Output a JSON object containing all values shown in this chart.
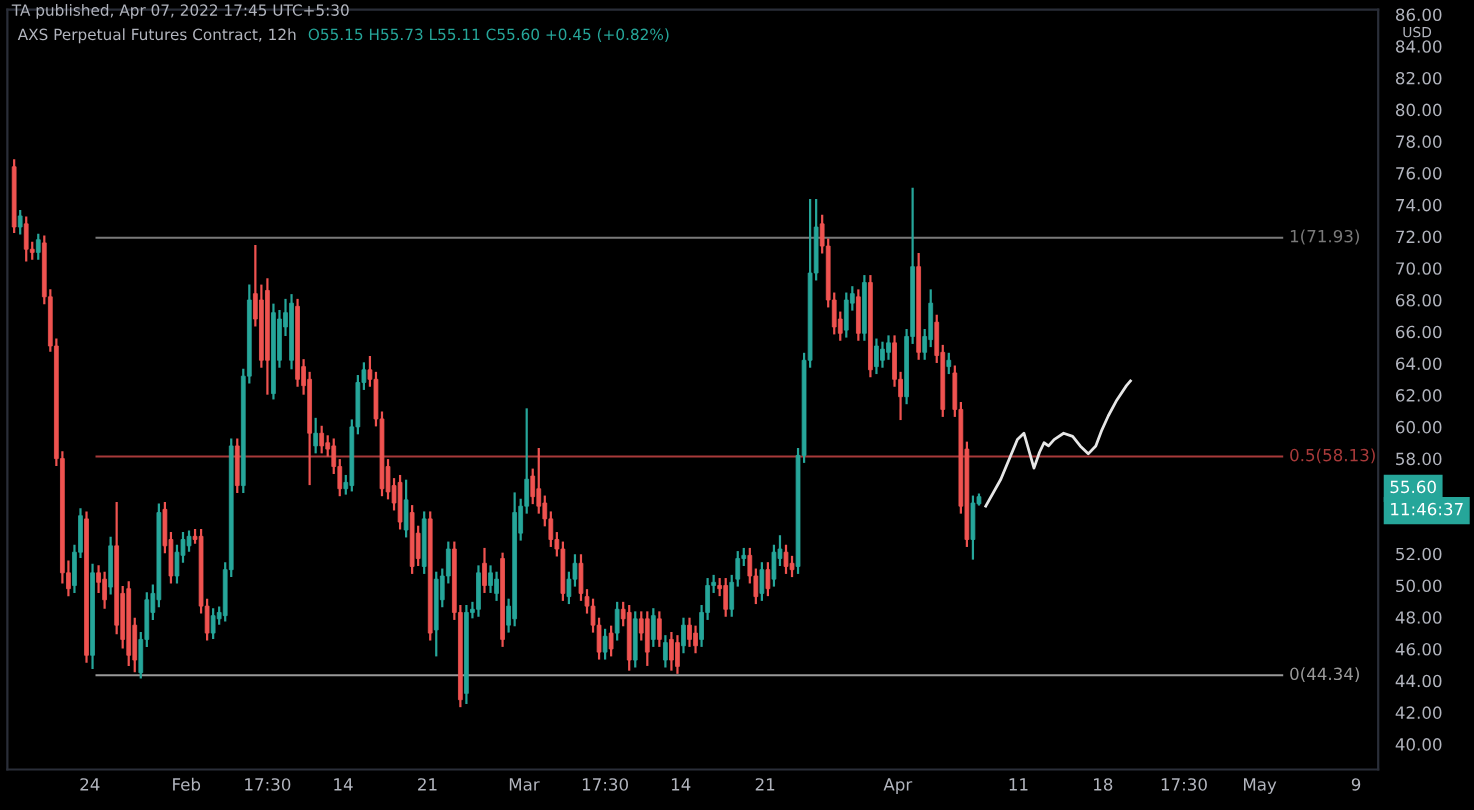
{
  "chart_data": {
    "type": "candlestick",
    "title": "AXS Perpetual Futures Contract, 12h",
    "subtitle": "O55.15 H55.73 L55.11 C55.60 +0.45 (+0.82%)",
    "annotations": [
      "TA published, Apr 07, 2022 17:45 UTC+5:30",
      "USD",
      "55.60",
      "11:46:37"
    ],
    "x": [
      "2022-01-17T17:30",
      "2022-01-18T05:30",
      "2022-01-18T17:30",
      "2022-01-19T05:30",
      "2022-01-19T17:30",
      "2022-01-20T05:30",
      "2022-01-20T17:30",
      "2022-01-21T05:30",
      "2022-01-21T17:30",
      "2022-01-22T05:30",
      "2022-01-22T17:30",
      "2022-01-23T05:30",
      "2022-01-23T17:30",
      "2022-01-24T05:30",
      "2022-01-24T17:30",
      "2022-01-25T05:30",
      "2022-01-25T17:30",
      "2022-01-26T05:30",
      "2022-01-26T17:30",
      "2022-01-27T05:30",
      "2022-01-27T17:30",
      "2022-01-28T05:30",
      "2022-01-28T17:30",
      "2022-01-29T05:30",
      "2022-01-29T17:30",
      "2022-01-30T05:30",
      "2022-01-30T17:30",
      "2022-01-31T05:30",
      "2022-01-31T17:30",
      "2022-02-01T05:30",
      "2022-02-01T17:30",
      "2022-02-02T05:30",
      "2022-02-02T17:30",
      "2022-02-03T05:30",
      "2022-02-03T17:30",
      "2022-02-04T05:30",
      "2022-02-04T17:30",
      "2022-02-05T05:30",
      "2022-02-05T17:30",
      "2022-02-06T05:30",
      "2022-02-06T17:30",
      "2022-02-07T05:30",
      "2022-02-07T17:30",
      "2022-02-08T05:30",
      "2022-02-08T17:30",
      "2022-02-09T05:30",
      "2022-02-09T17:30",
      "2022-02-10T05:30",
      "2022-02-10T17:30",
      "2022-02-11T05:30",
      "2022-02-11T17:30",
      "2022-02-12T05:30",
      "2022-02-12T17:30",
      "2022-02-13T05:30",
      "2022-02-13T17:30",
      "2022-02-14T05:30",
      "2022-02-14T17:30",
      "2022-02-15T05:30",
      "2022-02-15T17:30",
      "2022-02-16T05:30",
      "2022-02-16T17:30",
      "2022-02-17T05:30",
      "2022-02-17T17:30",
      "2022-02-18T05:30",
      "2022-02-18T17:30",
      "2022-02-19T05:30",
      "2022-02-19T17:30",
      "2022-02-20T05:30",
      "2022-02-20T17:30",
      "2022-02-21T05:30",
      "2022-02-21T17:30",
      "2022-02-22T05:30",
      "2022-02-22T17:30",
      "2022-02-23T05:30",
      "2022-02-23T17:30",
      "2022-02-24T05:30",
      "2022-02-24T17:30",
      "2022-02-25T05:30",
      "2022-02-25T17:30",
      "2022-02-26T05:30",
      "2022-02-26T17:30",
      "2022-02-27T05:30",
      "2022-02-27T17:30",
      "2022-02-28T05:30",
      "2022-02-28T17:30",
      "2022-03-01T05:30",
      "2022-03-01T17:30",
      "2022-03-02T05:30",
      "2022-03-02T17:30",
      "2022-03-03T05:30",
      "2022-03-03T17:30",
      "2022-03-04T05:30",
      "2022-03-04T17:30",
      "2022-03-05T05:30",
      "2022-03-05T17:30",
      "2022-03-06T05:30",
      "2022-03-06T17:30",
      "2022-03-07T05:30",
      "2022-03-07T17:30",
      "2022-03-08T05:30",
      "2022-03-08T17:30",
      "2022-03-09T05:30",
      "2022-03-09T17:30",
      "2022-03-10T05:30",
      "2022-03-10T17:30",
      "2022-03-11T05:30",
      "2022-03-11T17:30",
      "2022-03-12T05:30",
      "2022-03-12T17:30",
      "2022-03-13T05:30",
      "2022-03-13T17:30",
      "2022-03-14T05:30",
      "2022-03-14T17:30",
      "2022-03-15T05:30",
      "2022-03-15T17:30",
      "2022-03-16T05:30",
      "2022-03-16T17:30",
      "2022-03-17T05:30",
      "2022-03-17T17:30",
      "2022-03-18T05:30",
      "2022-03-18T17:30",
      "2022-03-19T05:30",
      "2022-03-19T17:30",
      "2022-03-20T05:30",
      "2022-03-20T17:30",
      "2022-03-21T05:30",
      "2022-03-21T17:30",
      "2022-03-22T05:30",
      "2022-03-22T17:30",
      "2022-03-23T05:30",
      "2022-03-23T17:30",
      "2022-03-24T05:30",
      "2022-03-24T17:30",
      "2022-03-25T05:30",
      "2022-03-25T17:30",
      "2022-03-26T05:30",
      "2022-03-26T17:30",
      "2022-03-27T05:30",
      "2022-03-27T17:30",
      "2022-03-28T05:30",
      "2022-03-28T17:30",
      "2022-03-29T05:30",
      "2022-03-29T17:30",
      "2022-03-30T05:30",
      "2022-03-30T17:30",
      "2022-03-31T05:30",
      "2022-03-31T17:30",
      "2022-04-01T05:30",
      "2022-04-01T17:30",
      "2022-04-02T05:30",
      "2022-04-02T17:30",
      "2022-04-03T05:30",
      "2022-04-03T17:30",
      "2022-04-04T05:30",
      "2022-04-04T17:30",
      "2022-04-05T05:30",
      "2022-04-05T17:30",
      "2022-04-06T05:30",
      "2022-04-06T17:30",
      "2022-04-07T05:30",
      "2022-04-07T17:30"
    ],
    "ohlc": [
      [
        76.4,
        76.8,
        72.3,
        72.6
      ],
      [
        72.6,
        73.6,
        72.2,
        73.3
      ],
      [
        72.8,
        73.2,
        70.5,
        71.2
      ],
      [
        71.2,
        71.6,
        70.6,
        71.0
      ],
      [
        71.0,
        72.1,
        70.6,
        71.8
      ],
      [
        71.6,
        72.0,
        67.8,
        68.2
      ],
      [
        68.2,
        68.6,
        64.8,
        65.1
      ],
      [
        65.1,
        65.5,
        57.6,
        58.0
      ],
      [
        58.0,
        58.4,
        50.2,
        50.8
      ],
      [
        50.8,
        51.5,
        49.4,
        49.8
      ],
      [
        50.0,
        52.5,
        49.6,
        52.1
      ],
      [
        52.1,
        54.8,
        51.8,
        54.4
      ],
      [
        54.2,
        54.6,
        45.2,
        45.6
      ],
      [
        45.6,
        51.3,
        44.8,
        50.8
      ],
      [
        50.8,
        51.2,
        49.6,
        50.2
      ],
      [
        50.4,
        50.8,
        48.6,
        49.1
      ],
      [
        49.9,
        53.0,
        49.5,
        52.5
      ],
      [
        52.5,
        55.2,
        47.0,
        47.5
      ],
      [
        49.5,
        49.9,
        46.1,
        46.6
      ],
      [
        49.8,
        50.2,
        45.0,
        45.6
      ],
      [
        47.5,
        47.9,
        44.6,
        45.3
      ],
      [
        44.5,
        47.0,
        44.2,
        46.6
      ],
      [
        46.6,
        49.5,
        46.2,
        49.1
      ],
      [
        48.3,
        50.0,
        47.9,
        49.5
      ],
      [
        49.1,
        55.1,
        48.7,
        54.6
      ],
      [
        54.8,
        55.2,
        52.1,
        52.5
      ],
      [
        52.9,
        53.3,
        50.2,
        50.6
      ],
      [
        50.6,
        52.5,
        50.2,
        52.1
      ],
      [
        51.9,
        53.3,
        51.5,
        52.9
      ],
      [
        52.5,
        53.4,
        52.2,
        53.1
      ],
      [
        53.1,
        53.5,
        52.7,
        52.9
      ],
      [
        53.1,
        53.5,
        48.3,
        48.7
      ],
      [
        48.7,
        49.1,
        46.6,
        47.0
      ],
      [
        47.0,
        48.5,
        46.7,
        48.1
      ],
      [
        47.9,
        48.6,
        47.6,
        48.3
      ],
      [
        48.1,
        51.4,
        47.8,
        51.0
      ],
      [
        51.0,
        59.2,
        50.6,
        58.8
      ],
      [
        58.8,
        59.2,
        55.9,
        56.3
      ],
      [
        56.3,
        63.6,
        55.9,
        63.2
      ],
      [
        63.2,
        68.9,
        62.8,
        68.0
      ],
      [
        68.4,
        71.4,
        66.4,
        66.8
      ],
      [
        68.0,
        68.9,
        63.8,
        64.2
      ],
      [
        68.6,
        69.3,
        62.1,
        64.2
      ],
      [
        62.1,
        67.7,
        61.8,
        67.2
      ],
      [
        64.2,
        67.3,
        63.8,
        66.8
      ],
      [
        66.3,
        68.0,
        65.8,
        67.2
      ],
      [
        64.2,
        68.3,
        63.7,
        67.8
      ],
      [
        67.6,
        68.0,
        62.6,
        63.0
      ],
      [
        63.8,
        64.2,
        62.1,
        62.6
      ],
      [
        63.0,
        63.4,
        56.4,
        59.6
      ],
      [
        58.8,
        60.5,
        58.4,
        59.6
      ],
      [
        59.6,
        60.0,
        58.4,
        58.8
      ],
      [
        59.0,
        59.4,
        58.2,
        58.6
      ],
      [
        58.8,
        59.2,
        57.1,
        57.5
      ],
      [
        57.5,
        57.9,
        55.7,
        56.1
      ],
      [
        56.1,
        56.9,
        55.8,
        56.5
      ],
      [
        56.3,
        60.4,
        56.0,
        60.0
      ],
      [
        60.0,
        63.2,
        59.6,
        62.8
      ],
      [
        62.8,
        64.0,
        62.4,
        63.6
      ],
      [
        63.6,
        64.4,
        62.6,
        63.0
      ],
      [
        63.0,
        63.4,
        60.1,
        60.5
      ],
      [
        60.5,
        60.9,
        55.7,
        56.1
      ],
      [
        57.5,
        57.9,
        55.5,
        55.9
      ],
      [
        56.3,
        56.7,
        54.8,
        55.2
      ],
      [
        56.5,
        56.9,
        53.6,
        54.0
      ],
      [
        53.5,
        56.6,
        53.1,
        55.4
      ],
      [
        54.6,
        55.0,
        50.8,
        51.2
      ],
      [
        53.3,
        53.7,
        51.3,
        51.7
      ],
      [
        51.2,
        54.6,
        50.8,
        54.2
      ],
      [
        54.2,
        54.6,
        46.6,
        47.0
      ],
      [
        47.2,
        50.8,
        45.6,
        50.4
      ],
      [
        49.1,
        51.0,
        48.7,
        50.6
      ],
      [
        50.6,
        52.7,
        50.2,
        52.3
      ],
      [
        52.3,
        52.7,
        47.9,
        48.3
      ],
      [
        48.3,
        48.7,
        42.4,
        42.8
      ],
      [
        43.2,
        48.7,
        42.6,
        48.3
      ],
      [
        48.3,
        48.9,
        48.0,
        48.5
      ],
      [
        48.5,
        51.2,
        48.1,
        50.8
      ],
      [
        51.4,
        52.3,
        49.6,
        50.0
      ],
      [
        50.0,
        51.2,
        49.6,
        50.8
      ],
      [
        49.5,
        50.8,
        49.1,
        50.4
      ],
      [
        51.7,
        52.0,
        46.2,
        46.6
      ],
      [
        47.5,
        49.1,
        47.1,
        48.7
      ],
      [
        47.9,
        55.8,
        47.5,
        54.6
      ],
      [
        53.3,
        55.4,
        52.9,
        55.0
      ],
      [
        55.0,
        61.1,
        54.6,
        56.7
      ],
      [
        56.9,
        57.3,
        55.2,
        55.6
      ],
      [
        56.1,
        58.6,
        54.6,
        55.0
      ],
      [
        55.2,
        55.6,
        53.8,
        54.2
      ],
      [
        54.2,
        54.6,
        52.5,
        52.9
      ],
      [
        52.9,
        53.3,
        51.9,
        52.3
      ],
      [
        52.3,
        52.7,
        49.1,
        49.5
      ],
      [
        49.3,
        50.8,
        48.9,
        50.4
      ],
      [
        50.4,
        51.9,
        50.0,
        51.4
      ],
      [
        51.4,
        51.9,
        49.1,
        49.5
      ],
      [
        49.3,
        49.7,
        48.3,
        48.7
      ],
      [
        48.7,
        49.1,
        47.1,
        47.5
      ],
      [
        47.5,
        47.9,
        45.4,
        45.8
      ],
      [
        45.8,
        47.2,
        45.4,
        46.8
      ],
      [
        47.0,
        47.4,
        45.6,
        46.0
      ],
      [
        47.0,
        48.9,
        46.6,
        48.5
      ],
      [
        48.5,
        48.9,
        47.5,
        47.9
      ],
      [
        48.3,
        48.7,
        44.7,
        45.3
      ],
      [
        45.3,
        48.3,
        44.9,
        47.9
      ],
      [
        47.9,
        48.3,
        46.6,
        47.0
      ],
      [
        47.9,
        48.3,
        45.0,
        45.8
      ],
      [
        46.6,
        48.5,
        46.2,
        48.1
      ],
      [
        47.9,
        48.3,
        46.2,
        46.6
      ],
      [
        45.3,
        46.8,
        44.9,
        46.4
      ],
      [
        46.6,
        47.0,
        44.7,
        45.3
      ],
      [
        46.4,
        46.8,
        44.5,
        44.9
      ],
      [
        46.2,
        47.9,
        45.8,
        47.5
      ],
      [
        47.5,
        47.9,
        46.2,
        46.6
      ],
      [
        47.0,
        47.4,
        45.8,
        46.2
      ],
      [
        46.6,
        48.7,
        46.2,
        48.3
      ],
      [
        48.3,
        50.4,
        47.9,
        50.0
      ],
      [
        50.0,
        50.6,
        49.6,
        50.2
      ],
      [
        50.0,
        50.4,
        49.4,
        49.8
      ],
      [
        50.0,
        50.4,
        48.1,
        48.5
      ],
      [
        48.5,
        50.6,
        48.1,
        50.2
      ],
      [
        50.4,
        52.1,
        50.0,
        51.7
      ],
      [
        51.7,
        52.3,
        51.3,
        51.9
      ],
      [
        51.9,
        52.3,
        50.2,
        50.6
      ],
      [
        50.6,
        51.0,
        48.9,
        49.3
      ],
      [
        49.5,
        51.4,
        49.1,
        51.0
      ],
      [
        51.0,
        51.4,
        49.4,
        49.8
      ],
      [
        50.4,
        52.5,
        50.0,
        52.1
      ],
      [
        51.7,
        53.1,
        51.3,
        52.3
      ],
      [
        52.1,
        52.5,
        50.8,
        51.2
      ],
      [
        51.4,
        51.8,
        50.6,
        51.0
      ],
      [
        51.2,
        58.6,
        50.8,
        58.2
      ],
      [
        58.2,
        64.6,
        57.8,
        64.2
      ],
      [
        64.2,
        74.3,
        63.8,
        69.7
      ],
      [
        69.7,
        74.3,
        69.3,
        72.6
      ],
      [
        72.8,
        73.3,
        71.0,
        71.4
      ],
      [
        71.4,
        71.8,
        67.6,
        68.0
      ],
      [
        68.0,
        68.4,
        65.9,
        66.3
      ],
      [
        66.8,
        67.2,
        65.5,
        65.9
      ],
      [
        66.1,
        68.4,
        65.7,
        68.0
      ],
      [
        67.8,
        68.8,
        67.4,
        68.4
      ],
      [
        68.2,
        68.6,
        65.5,
        65.9
      ],
      [
        65.9,
        69.5,
        65.5,
        69.1
      ],
      [
        69.1,
        69.5,
        63.2,
        63.6
      ],
      [
        63.8,
        65.5,
        63.4,
        65.1
      ],
      [
        64.2,
        65.3,
        63.8,
        64.9
      ],
      [
        64.7,
        65.7,
        64.3,
        65.3
      ],
      [
        65.3,
        65.7,
        62.6,
        63.0
      ],
      [
        63.0,
        63.4,
        60.5,
        61.9
      ],
      [
        61.9,
        66.1,
        61.5,
        65.7
      ],
      [
        65.7,
        75.0,
        65.3,
        70.1
      ],
      [
        70.1,
        70.9,
        64.3,
        64.7
      ],
      [
        64.7,
        66.1,
        64.3,
        65.7
      ],
      [
        65.5,
        68.6,
        65.1,
        67.8
      ],
      [
        66.6,
        67.0,
        64.1,
        64.5
      ],
      [
        64.7,
        65.1,
        60.7,
        61.1
      ],
      [
        63.8,
        64.6,
        63.4,
        64.2
      ],
      [
        63.4,
        63.8,
        60.7,
        61.1
      ],
      [
        61.1,
        61.5,
        54.6,
        55.0
      ],
      [
        58.6,
        59.0,
        52.5,
        52.9
      ],
      [
        52.9,
        55.6,
        51.7,
        55.2
      ],
      [
        55.15,
        55.73,
        55.11,
        55.6
      ]
    ],
    "series": [
      {
        "type": "line",
        "color": "#e6e6e6",
        "x": [
          "2022-04-08T07:00",
          "2022-04-09T13:00",
          "2022-04-10T22:00",
          "2022-04-11T11:00",
          "2022-04-11T22:00",
          "2022-04-12T07:00",
          "2022-04-12T18:00",
          "2022-04-13T03:00",
          "2022-04-13T12:00",
          "2022-04-13T23:00",
          "2022-04-14T18:00",
          "2022-04-15T12:00",
          "2022-04-16T03:00",
          "2022-04-16T19:00",
          "2022-04-17T10:00",
          "2022-04-17T22:00",
          "2022-04-18T11:00",
          "2022-04-19T04:00",
          "2022-04-19T23:00",
          "2022-04-20T07:00"
        ],
        "values": [
          55.0,
          56.7,
          59.2,
          59.6,
          58.4,
          57.4,
          58.4,
          59.0,
          58.8,
          59.2,
          59.6,
          59.4,
          58.8,
          58.3,
          58.8,
          59.8,
          60.7,
          61.7,
          62.6,
          62.9
        ]
      }
    ],
    "ref_lines": [
      {
        "axis": "y",
        "value": 71.93,
        "label": "1(71.93)",
        "color": "#7a7a7a"
      },
      {
        "axis": "y",
        "value": 58.13,
        "label": "0.5(58.13)",
        "color": "#a83a3a"
      },
      {
        "axis": "y",
        "value": 44.34,
        "label": "0(44.34)",
        "color": "#9a9a9a"
      }
    ],
    "xlim": [
      "2022-01-17T04:00",
      "2022-05-10T20:00"
    ],
    "xticks": [
      {
        "value": "2022-01-24",
        "label": "24"
      },
      {
        "value": "2022-02-01",
        "label": "Feb"
      },
      {
        "value": "2022-02-07T17:30",
        "label": "17:30"
      },
      {
        "value": "2022-02-14",
        "label": "14"
      },
      {
        "value": "2022-02-21",
        "label": "21"
      },
      {
        "value": "2022-03-01",
        "label": "Mar"
      },
      {
        "value": "2022-03-07T17:30",
        "label": "17:30"
      },
      {
        "value": "2022-03-14",
        "label": "14"
      },
      {
        "value": "2022-03-21",
        "label": "21"
      },
      {
        "value": "2022-04-01",
        "label": "Apr"
      },
      {
        "value": "2022-04-11",
        "label": "11"
      },
      {
        "value": "2022-04-18",
        "label": "18"
      },
      {
        "value": "2022-04-24T17:30",
        "label": "17:30"
      },
      {
        "value": "2022-05-01",
        "label": "May"
      },
      {
        "value": "2022-05-09",
        "label": "9"
      }
    ],
    "ylim": [
      38.4,
      86.3
    ],
    "yticks": [
      {
        "value": 40,
        "label": "40.00"
      },
      {
        "value": 42,
        "label": "42.00"
      },
      {
        "value": 44,
        "label": "44.00"
      },
      {
        "value": 46,
        "label": "46.00"
      },
      {
        "value": 48,
        "label": "48.00"
      },
      {
        "value": 50,
        "label": "50.00"
      },
      {
        "value": 52,
        "label": "52.00"
      },
      {
        "value": 58,
        "label": "58.00"
      },
      {
        "value": 60,
        "label": "60.00"
      },
      {
        "value": 62,
        "label": "62.00"
      },
      {
        "value": 64,
        "label": "64.00"
      },
      {
        "value": 66,
        "label": "66.00"
      },
      {
        "value": 68,
        "label": "68.00"
      },
      {
        "value": 70,
        "label": "70.00"
      },
      {
        "value": 72,
        "label": "72.00"
      },
      {
        "value": 74,
        "label": "74.00"
      },
      {
        "value": 76,
        "label": "76.00"
      },
      {
        "value": 78,
        "label": "78.00"
      },
      {
        "value": 80,
        "label": "80.00"
      },
      {
        "value": 82,
        "label": "82.00"
      },
      {
        "value": 84,
        "label": "84.00"
      },
      {
        "value": 86,
        "label": "86.00"
      }
    ]
  }
}
